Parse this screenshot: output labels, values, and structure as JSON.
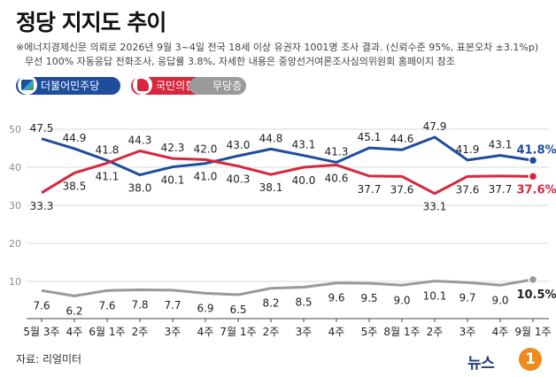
{
  "title": "정당 지지도 추이",
  "notes": [
    "※에너지경제신문 의뢰로 2026년 9월 3~4일 전국 18세 이상 유권자 1001명 조사 결과. (신뢰수준 95%, 표본오차 ±3.1%p)",
    "무선 100% 자동응답 전화조사, 응답률 3.8%, 자세한 내용은 중앙선거여론조사심의위원회 홈페이지 참조"
  ],
  "legend": [
    {
      "label": "더불어민주당",
      "color": "#1d4d9c",
      "icon": "democratic-party-logo-icon"
    },
    {
      "label": "국민의힘",
      "color": "#d7263d",
      "icon": "people-power-party-logo-icon"
    },
    {
      "label": "무당층",
      "color": "#9a9a9a",
      "icon": "independent-icon"
    }
  ],
  "source": "자료: 리얼미터",
  "logo_text": "뉴스",
  "logo_badge": "1",
  "chart_data": {
    "type": "line",
    "x": [
      "5월 3주",
      "4주",
      "6월 1주",
      "2주",
      "3주",
      "4주",
      "7월 1주",
      "2주",
      "3주",
      "4주",
      "5주",
      "8월 1주",
      "2주",
      "3주",
      "4주",
      "9월 1주"
    ],
    "y_ticks": [
      10,
      20,
      30,
      40,
      50
    ],
    "ylim": [
      0,
      50
    ],
    "grid": true,
    "series": [
      {
        "name": "더불어민주당",
        "color": "#1d4d9c",
        "values": [
          47.5,
          44.9,
          41.8,
          38.0,
          40.1,
          41.0,
          43.0,
          44.8,
          43.1,
          41.3,
          45.1,
          44.6,
          47.9,
          41.9,
          43.1,
          41.8
        ],
        "labels": [
          "47.5",
          "44.9",
          "41.8",
          "38.0",
          "40.1",
          "41.0",
          "43.0",
          "44.8",
          "43.1",
          "41.3",
          "45.1",
          "44.6",
          "47.9",
          "41.9",
          "43.1",
          "41.8%"
        ]
      },
      {
        "name": "국민의힘",
        "color": "#d7263d",
        "values": [
          33.3,
          38.5,
          41.1,
          44.3,
          42.3,
          42.0,
          40.3,
          38.1,
          40.0,
          40.6,
          37.7,
          37.6,
          33.1,
          37.6,
          37.7,
          37.6
        ],
        "labels": [
          "33.3",
          "38.5",
          "41.1",
          "44.3",
          "42.3",
          "42.0",
          "40.3",
          "38.1",
          "40.0",
          "40.6",
          "37.7",
          "37.6",
          "33.1",
          "37.6",
          "37.7",
          "37.6%"
        ]
      },
      {
        "name": "무당층",
        "color": "#9a9a9a",
        "values": [
          7.6,
          6.2,
          7.6,
          7.8,
          7.7,
          6.9,
          6.5,
          8.2,
          8.5,
          9.6,
          9.5,
          9.0,
          10.1,
          9.7,
          9.0,
          10.5
        ],
        "labels": [
          "7.6",
          "6.2",
          "7.6",
          "7.8",
          "7.7",
          "6.9",
          "6.5",
          "8.2",
          "8.5",
          "9.6",
          "9.5",
          "9.0",
          "10.1",
          "9.7",
          "9.0",
          "10.5%"
        ]
      }
    ]
  }
}
